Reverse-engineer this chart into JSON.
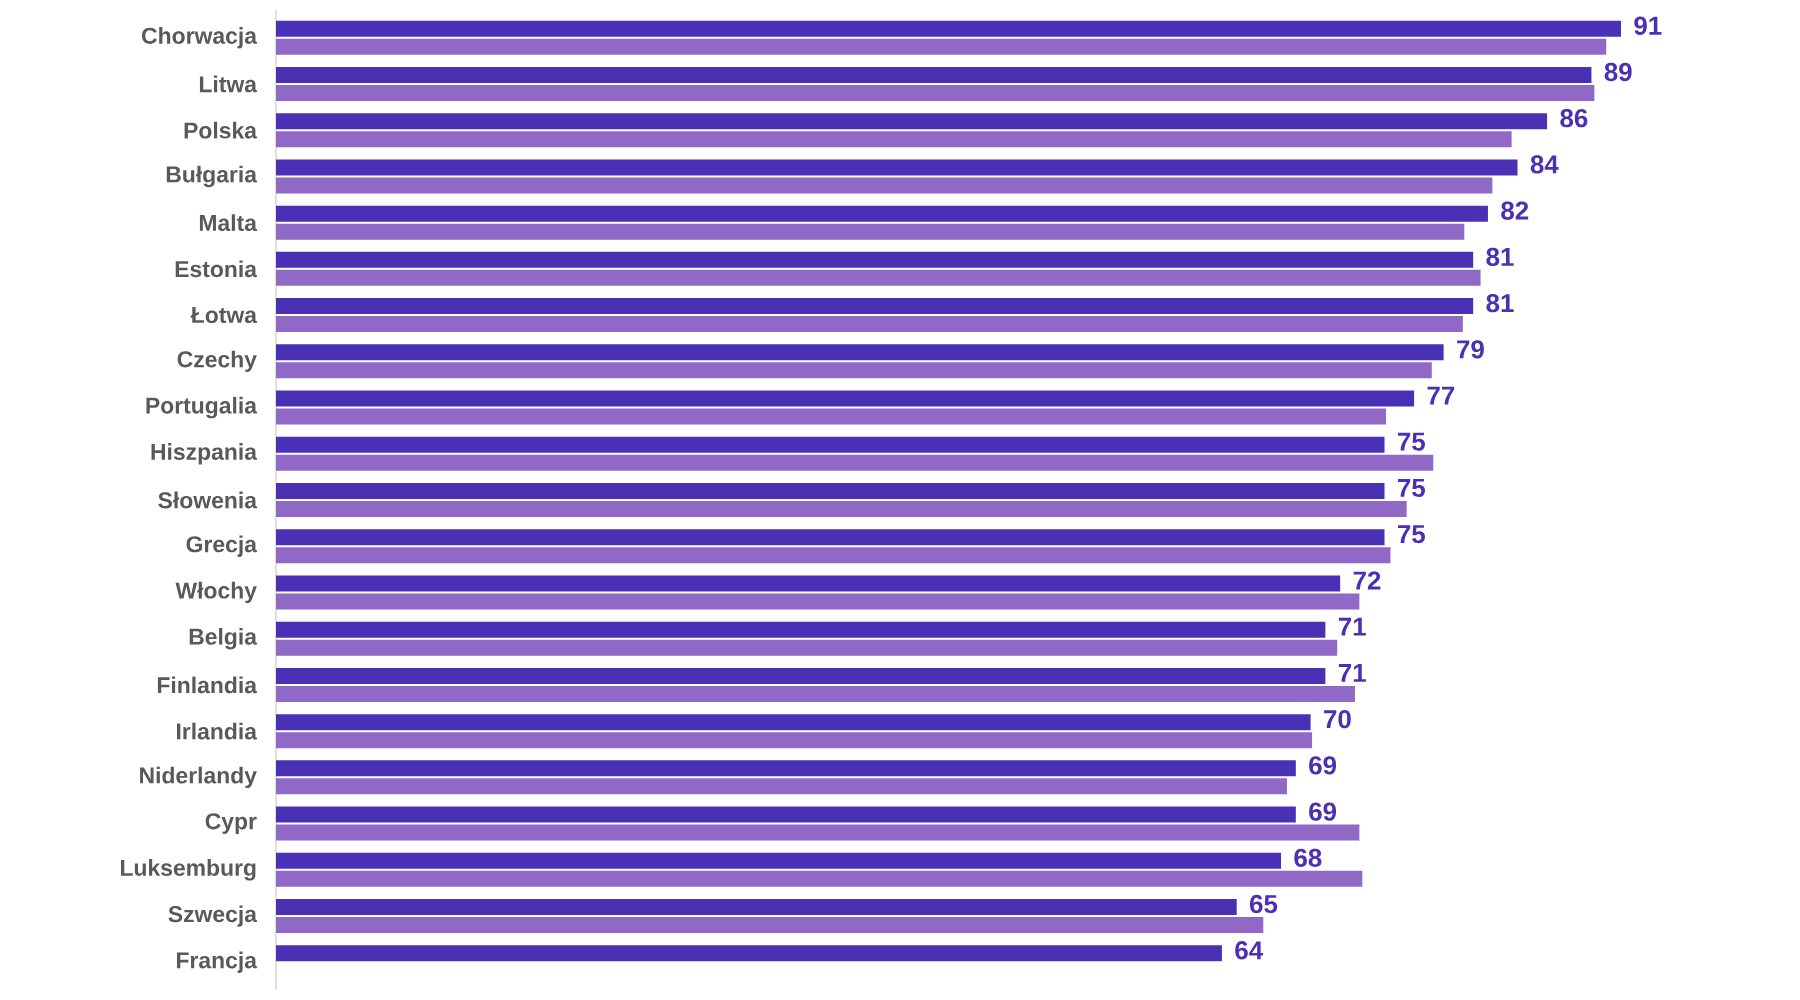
{
  "chart_data": {
    "type": "bar",
    "orientation": "horizontal",
    "tick_labels": "y",
    "categories": [
      "Chorwacja",
      "Litwa",
      "Polska",
      "Bułgaria",
      "Malta",
      "Estonia",
      "Łotwa",
      "Czechy",
      "Portugalia",
      "Hiszpania",
      "Słowenia",
      "Grecja",
      "Włochy",
      "Belgia",
      "Finlandia",
      "Irlandia",
      "Niderlandy",
      "Cypr",
      "Luksemburg",
      "Szwecja",
      "Francja"
    ],
    "series": [
      {
        "color": "#4a30b5",
        "values": [
          91,
          89,
          86,
          84,
          82,
          81,
          81,
          79,
          77,
          75,
          75,
          75,
          72,
          71,
          71,
          70,
          69,
          69,
          68,
          65,
          64
        ],
        "value_labels": [
          "91",
          "89",
          "86",
          "84",
          "82",
          "81",
          "81",
          "79",
          "77",
          "75",
          "75",
          "75",
          "72",
          "71",
          "71",
          "70",
          "69",
          "69",
          "68",
          "65",
          "64"
        ]
      },
      {
        "color": "#9068c6",
        "values": [
          90.0,
          89.2,
          83.6,
          82.3,
          80.4,
          81.5,
          80.3,
          78.2,
          75.1,
          78.3,
          76.5,
          75.4,
          73.3,
          71.8,
          73.0,
          70.1,
          68.4,
          73.3,
          73.5,
          66.8,
          null
        ]
      }
    ]
  }
}
